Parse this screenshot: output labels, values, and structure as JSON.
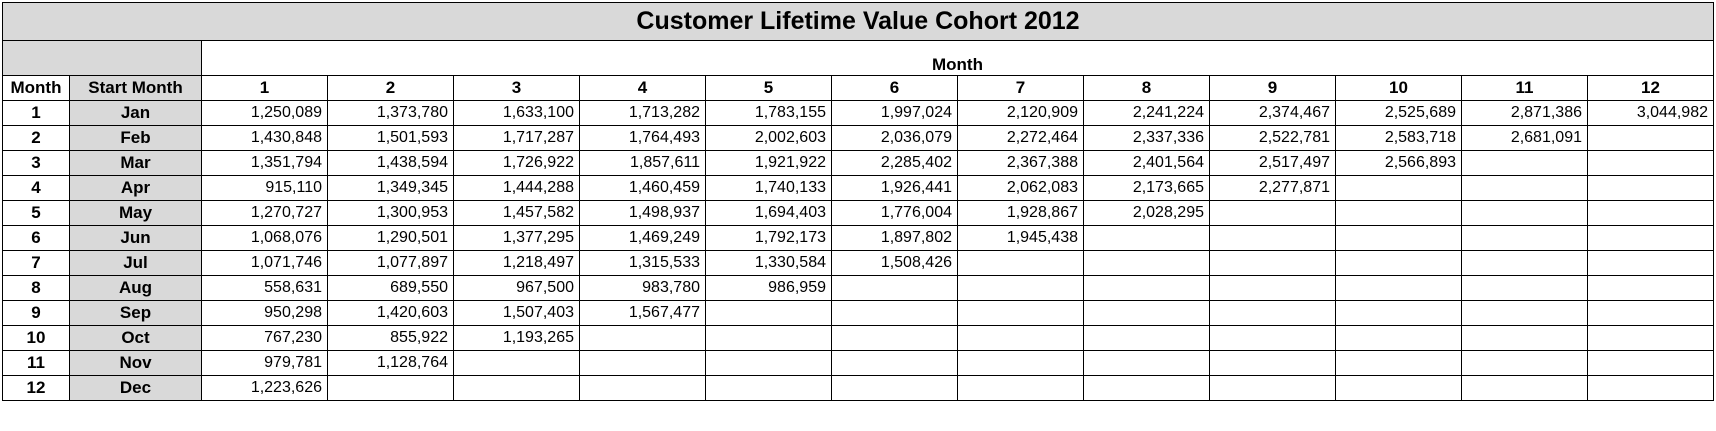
{
  "title": "Customer Lifetime Value Cohort 2012",
  "month_group_label": "Month",
  "index_header": "Month",
  "start_month_header": "Start Month",
  "months": [
    "1",
    "2",
    "3",
    "4",
    "5",
    "6",
    "7",
    "8",
    "9",
    "10",
    "11",
    "12"
  ],
  "rows": [
    {
      "index": "1",
      "start": "Jan",
      "values": [
        "1,250,089",
        "1,373,780",
        "1,633,100",
        "1,713,282",
        "1,783,155",
        "1,997,024",
        "2,120,909",
        "2,241,224",
        "2,374,467",
        "2,525,689",
        "2,871,386",
        "3,044,982"
      ]
    },
    {
      "index": "2",
      "start": "Feb",
      "values": [
        "1,430,848",
        "1,501,593",
        "1,717,287",
        "1,764,493",
        "2,002,603",
        "2,036,079",
        "2,272,464",
        "2,337,336",
        "2,522,781",
        "2,583,718",
        "2,681,091"
      ]
    },
    {
      "index": "3",
      "start": "Mar",
      "values": [
        "1,351,794",
        "1,438,594",
        "1,726,922",
        "1,857,611",
        "1,921,922",
        "2,285,402",
        "2,367,388",
        "2,401,564",
        "2,517,497",
        "2,566,893"
      ]
    },
    {
      "index": "4",
      "start": "Apr",
      "values": [
        "915,110",
        "1,349,345",
        "1,444,288",
        "1,460,459",
        "1,740,133",
        "1,926,441",
        "2,062,083",
        "2,173,665",
        "2,277,871"
      ]
    },
    {
      "index": "5",
      "start": "May",
      "values": [
        "1,270,727",
        "1,300,953",
        "1,457,582",
        "1,498,937",
        "1,694,403",
        "1,776,004",
        "1,928,867",
        "2,028,295"
      ]
    },
    {
      "index": "6",
      "start": "Jun",
      "values": [
        "1,068,076",
        "1,290,501",
        "1,377,295",
        "1,469,249",
        "1,792,173",
        "1,897,802",
        "1,945,438"
      ]
    },
    {
      "index": "7",
      "start": "Jul",
      "values": [
        "1,071,746",
        "1,077,897",
        "1,218,497",
        "1,315,533",
        "1,330,584",
        "1,508,426"
      ]
    },
    {
      "index": "8",
      "start": "Aug",
      "values": [
        "558,631",
        "689,550",
        "967,500",
        "983,780",
        "986,959"
      ]
    },
    {
      "index": "9",
      "start": "Sep",
      "values": [
        "950,298",
        "1,420,603",
        "1,507,403",
        "1,567,477"
      ]
    },
    {
      "index": "10",
      "start": "Oct",
      "values": [
        "767,230",
        "855,922",
        "1,193,265"
      ]
    },
    {
      "index": "11",
      "start": "Nov",
      "values": [
        "979,781",
        "1,128,764"
      ]
    },
    {
      "index": "12",
      "start": "Dec",
      "values": [
        "1,223,626"
      ]
    }
  ]
}
